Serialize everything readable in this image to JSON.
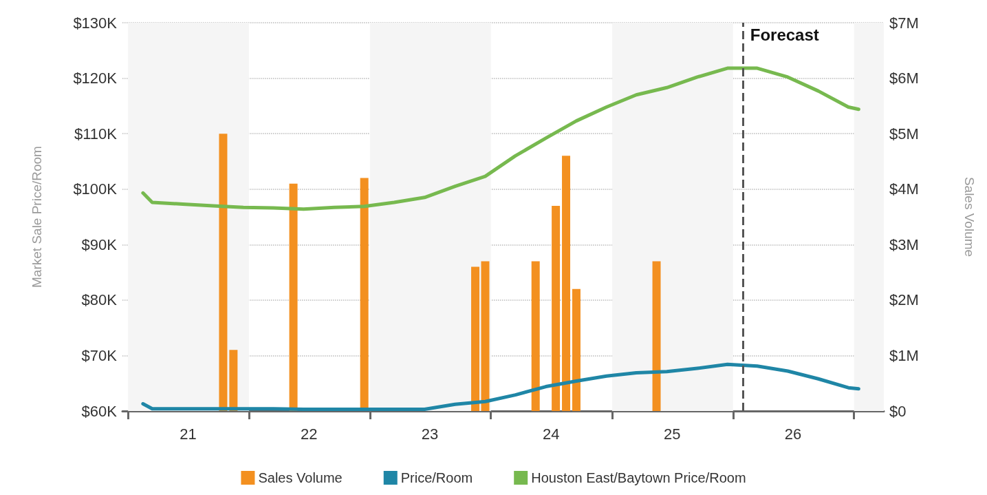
{
  "chart_data": {
    "type": "line",
    "ylabel": "Market Sale Price/Room",
    "y2label": "Sales Volume",
    "xlim": [
      "2020-12-15",
      "2027-04-01"
    ],
    "xticks": [
      {
        "value": "2021-01-01",
        "label": null
      },
      {
        "value": "2021-07-01",
        "label": "21"
      },
      {
        "value": "2022-01-01",
        "label": null
      },
      {
        "value": "2022-07-01",
        "label": "22"
      },
      {
        "value": "2023-01-01",
        "label": null
      },
      {
        "value": "2023-07-01",
        "label": "23"
      },
      {
        "value": "2024-01-01",
        "label": null
      },
      {
        "value": "2024-07-01",
        "label": "24"
      },
      {
        "value": "2025-01-01",
        "label": null
      },
      {
        "value": "2025-07-01",
        "label": "25"
      },
      {
        "value": "2026-01-01",
        "label": null
      },
      {
        "value": "2026-07-01",
        "label": "26"
      },
      {
        "value": "2027-01-01",
        "label": null
      }
    ],
    "ylim": [
      60000,
      130000
    ],
    "yticks": [
      {
        "value": 60000,
        "label": "$60K"
      },
      {
        "value": 70000,
        "label": "$70K"
      },
      {
        "value": 80000,
        "label": "$80K"
      },
      {
        "value": 90000,
        "label": "$90K"
      },
      {
        "value": 100000,
        "label": "$100K"
      },
      {
        "value": 110000,
        "label": "$110K"
      },
      {
        "value": 120000,
        "label": "$120K"
      },
      {
        "value": 130000,
        "label": "$130K"
      }
    ],
    "y2lim": [
      0,
      7000000
    ],
    "y2ticks": [
      {
        "value": 0,
        "label": "$0"
      },
      {
        "value": 1000000,
        "label": "$1M"
      },
      {
        "value": 2000000,
        "label": "$2M"
      },
      {
        "value": 3000000,
        "label": "$3M"
      },
      {
        "value": 4000000,
        "label": "$4M"
      },
      {
        "value": 5000000,
        "label": "$5M"
      },
      {
        "value": 6000000,
        "label": "$6M"
      },
      {
        "value": 7000000,
        "label": "$7M"
      }
    ],
    "grid": "y",
    "legend": "bottom",
    "marker": "none",
    "bands": [
      {
        "axis": "x",
        "from": "2021-01-01",
        "to": "2022-01-01",
        "color": "#f5f5f5"
      },
      {
        "axis": "x",
        "from": "2023-01-01",
        "to": "2024-01-01",
        "color": "#f5f5f5"
      },
      {
        "axis": "x",
        "from": "2025-01-01",
        "to": "2026-01-01",
        "color": "#f5f5f5"
      },
      {
        "axis": "x",
        "from": "2027-01-01",
        "to": "2027-04-01",
        "color": "#f5f5f5"
      }
    ],
    "ref_lines": [
      {
        "axis": "x",
        "value": "2026-02-01",
        "label": "Forecast",
        "color": "#555555",
        "line_style": "dashed"
      }
    ],
    "series": [
      {
        "name": "Sales Volume",
        "type": "bar",
        "axis": "y2",
        "color": "#f39020",
        "x": [
          "2021-10-15",
          "2021-11-15",
          "2022-05-15",
          "2022-12-15",
          "2023-11-15",
          "2023-12-15",
          "2024-05-15",
          "2024-07-15",
          "2024-08-15",
          "2024-09-15",
          "2025-05-15"
        ],
        "values": [
          5000000,
          1100000,
          4100000,
          4200000,
          2600000,
          2700000,
          2700000,
          3700000,
          4600000,
          2200000,
          2700000
        ]
      },
      {
        "name": "Price/Room",
        "color": "#1f86a6",
        "x": [
          "2021-02-15",
          "2021-03-15",
          "2021-06-15",
          "2021-09-15",
          "2021-12-15",
          "2022-03-15",
          "2022-06-15",
          "2022-09-15",
          "2022-12-15",
          "2023-03-15",
          "2023-06-15",
          "2023-09-15",
          "2023-12-15",
          "2024-03-15",
          "2024-06-15",
          "2024-09-15",
          "2024-12-15",
          "2025-03-15",
          "2025-06-15",
          "2025-09-15",
          "2025-12-15",
          "2026-03-15",
          "2026-06-15",
          "2026-09-15",
          "2026-12-15",
          "2027-01-15"
        ],
        "values": [
          61300,
          60400,
          60400,
          60400,
          60400,
          60400,
          60300,
          60300,
          60300,
          60300,
          60300,
          61200,
          61700,
          62900,
          64400,
          65400,
          66300,
          66900,
          67100,
          67700,
          68400,
          68100,
          67200,
          65800,
          64200,
          64000
        ]
      },
      {
        "name": "Houston East/Baytown Price/Room",
        "color": "#77b94f",
        "x": [
          "2021-02-15",
          "2021-03-15",
          "2021-06-15",
          "2021-09-15",
          "2021-12-15",
          "2022-03-15",
          "2022-06-15",
          "2022-09-15",
          "2022-12-15",
          "2023-03-15",
          "2023-06-15",
          "2023-09-15",
          "2023-12-15",
          "2024-03-15",
          "2024-06-15",
          "2024-09-15",
          "2024-12-15",
          "2025-03-15",
          "2025-06-15",
          "2025-09-15",
          "2025-12-15",
          "2026-03-15",
          "2026-06-15",
          "2026-09-15",
          "2026-12-15",
          "2027-01-15"
        ],
        "values": [
          99300,
          97600,
          97300,
          97000,
          96700,
          96600,
          96400,
          96700,
          96900,
          97600,
          98500,
          100500,
          102300,
          106000,
          109200,
          112300,
          114800,
          117000,
          118300,
          120200,
          121800,
          121800,
          120200,
          117700,
          114800,
          114400
        ]
      }
    ]
  }
}
